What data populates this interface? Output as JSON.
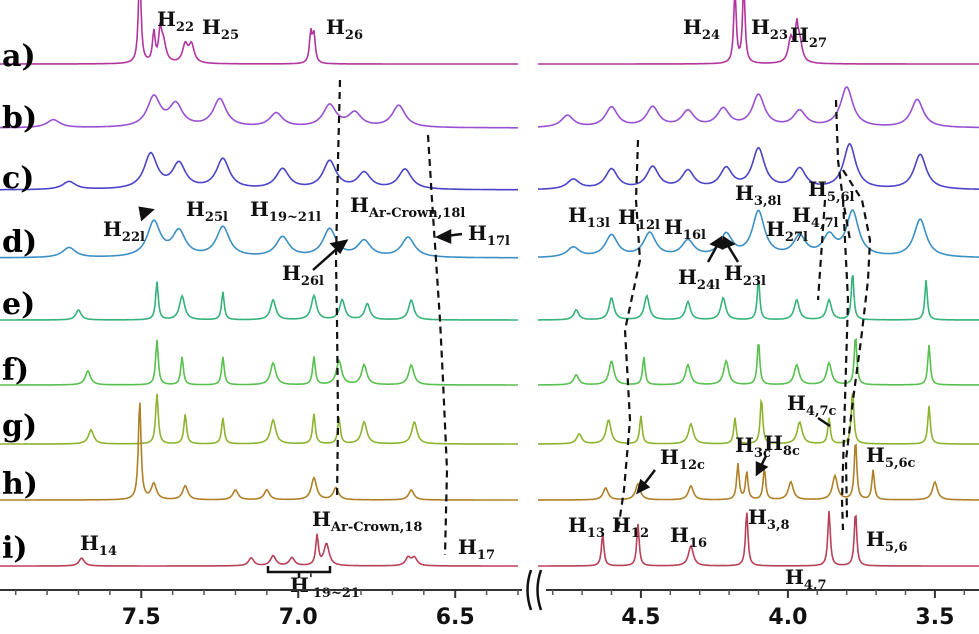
{
  "chart_data": {
    "type": "line",
    "title": "",
    "xlabel": "",
    "ylabel": "",
    "x_panels": [
      {
        "name": "left",
        "xlim": [
          7.95,
          6.3
        ],
        "ticks": [
          "7.5",
          "7.0",
          "6.5"
        ],
        "tick_values": [
          7.5,
          7.0,
          6.5
        ]
      },
      {
        "name": "right",
        "xlim": [
          4.85,
          3.35
        ],
        "ticks": [
          "4.5",
          "4.0",
          "3.5"
        ],
        "tick_values": [
          4.5,
          4.0,
          3.5
        ]
      }
    ],
    "axis_break": true,
    "grid": false,
    "series": [
      {
        "name": "a)",
        "color": "#b2359f",
        "peaks": [
          [
            7.505,
            95
          ],
          [
            7.46,
            30
          ],
          [
            7.44,
            28
          ],
          [
            7.43,
            22
          ],
          [
            7.36,
            18
          ],
          [
            7.34,
            18
          ],
          [
            6.96,
            30
          ],
          [
            6.95,
            28
          ],
          [
            4.18,
            75
          ],
          [
            4.15,
            80
          ],
          [
            3.99,
            25
          ],
          [
            3.97,
            30
          ],
          [
            3.96,
            22
          ]
        ]
      },
      {
        "name": "b)",
        "color": "#9a50d2",
        "peaks": [
          [
            7.78,
            8
          ],
          [
            7.46,
            30
          ],
          [
            7.39,
            22
          ],
          [
            7.25,
            28
          ],
          [
            7.07,
            14
          ],
          [
            6.9,
            22
          ],
          [
            6.82,
            14
          ],
          [
            6.68,
            22
          ],
          [
            4.75,
            12
          ],
          [
            4.6,
            20
          ],
          [
            4.46,
            20
          ],
          [
            4.34,
            16
          ],
          [
            4.22,
            18
          ],
          [
            4.1,
            32
          ],
          [
            3.96,
            16
          ],
          [
            3.8,
            40
          ],
          [
            3.56,
            28
          ]
        ]
      },
      {
        "name": "c)",
        "color": "#4b44c8",
        "peaks": [
          [
            7.73,
            8
          ],
          [
            7.47,
            35
          ],
          [
            7.38,
            25
          ],
          [
            7.24,
            30
          ],
          [
            7.05,
            20
          ],
          [
            6.9,
            28
          ],
          [
            6.79,
            16
          ],
          [
            6.66,
            20
          ],
          [
            4.73,
            10
          ],
          [
            4.6,
            20
          ],
          [
            4.46,
            22
          ],
          [
            4.34,
            18
          ],
          [
            4.21,
            20
          ],
          [
            4.1,
            40
          ],
          [
            3.96,
            20
          ],
          [
            3.79,
            45
          ],
          [
            3.55,
            35
          ]
        ]
      },
      {
        "name": "d)",
        "color": "#3c8fc4",
        "peaks": [
          [
            7.73,
            10
          ],
          [
            7.46,
            35
          ],
          [
            7.38,
            25
          ],
          [
            7.24,
            30
          ],
          [
            7.05,
            20
          ],
          [
            6.9,
            28
          ],
          [
            6.79,
            16
          ],
          [
            6.65,
            20
          ],
          [
            4.73,
            10
          ],
          [
            4.6,
            22
          ],
          [
            4.47,
            24
          ],
          [
            4.34,
            16
          ],
          [
            4.21,
            22
          ],
          [
            4.1,
            45
          ],
          [
            3.96,
            20
          ],
          [
            3.86,
            20
          ],
          [
            3.78,
            45
          ],
          [
            3.55,
            38
          ]
        ]
      },
      {
        "name": "e)",
        "color": "#36b27a",
        "peaks": [
          [
            7.7,
            10
          ],
          [
            7.45,
            38
          ],
          [
            7.37,
            24
          ],
          [
            7.24,
            28
          ],
          [
            7.08,
            20
          ],
          [
            6.95,
            24
          ],
          [
            6.86,
            20
          ],
          [
            6.78,
            16
          ],
          [
            6.64,
            20
          ],
          [
            4.72,
            10
          ],
          [
            4.6,
            22
          ],
          [
            4.48,
            24
          ],
          [
            4.34,
            18
          ],
          [
            4.22,
            22
          ],
          [
            4.1,
            42
          ],
          [
            3.97,
            20
          ],
          [
            3.86,
            20
          ],
          [
            3.78,
            48
          ],
          [
            3.53,
            40
          ]
        ]
      },
      {
        "name": "f)",
        "color": "#58c04e",
        "peaks": [
          [
            7.67,
            14
          ],
          [
            7.45,
            45
          ],
          [
            7.37,
            28
          ],
          [
            7.24,
            28
          ],
          [
            7.08,
            22
          ],
          [
            6.95,
            28
          ],
          [
            6.87,
            24
          ],
          [
            6.79,
            20
          ],
          [
            6.64,
            20
          ],
          [
            4.72,
            10
          ],
          [
            4.6,
            24
          ],
          [
            4.49,
            28
          ],
          [
            4.34,
            20
          ],
          [
            4.21,
            24
          ],
          [
            4.1,
            44
          ],
          [
            3.97,
            20
          ],
          [
            3.86,
            22
          ],
          [
            3.77,
            50
          ],
          [
            3.52,
            40
          ]
        ]
      },
      {
        "name": "g)",
        "color": "#8db430",
        "peaks": [
          [
            7.66,
            14
          ],
          [
            7.45,
            50
          ],
          [
            7.36,
            30
          ],
          [
            7.24,
            26
          ],
          [
            7.08,
            24
          ],
          [
            6.95,
            30
          ],
          [
            6.87,
            26
          ],
          [
            6.79,
            22
          ],
          [
            6.63,
            22
          ],
          [
            4.71,
            10
          ],
          [
            4.61,
            24
          ],
          [
            4.5,
            28
          ],
          [
            4.33,
            20
          ],
          [
            4.18,
            26
          ],
          [
            4.09,
            46
          ],
          [
            3.96,
            22
          ],
          [
            3.86,
            26
          ],
          [
            3.78,
            55
          ],
          [
            3.52,
            38
          ]
        ]
      },
      {
        "name": "h)",
        "color": "#b08028",
        "peaks": [
          [
            7.505,
            100
          ],
          [
            7.46,
            16
          ],
          [
            7.36,
            14
          ],
          [
            7.2,
            10
          ],
          [
            7.1,
            10
          ],
          [
            6.95,
            22
          ],
          [
            6.88,
            12
          ],
          [
            6.64,
            10
          ],
          [
            4.62,
            12
          ],
          [
            4.51,
            16
          ],
          [
            4.33,
            14
          ],
          [
            4.17,
            36
          ],
          [
            4.14,
            28
          ],
          [
            4.08,
            32
          ],
          [
            3.99,
            18
          ],
          [
            3.84,
            24
          ],
          [
            3.77,
            60
          ],
          [
            3.71,
            30
          ],
          [
            3.5,
            18
          ]
        ]
      },
      {
        "name": "i)",
        "color": "#b84058",
        "peaks": [
          [
            7.69,
            8
          ],
          [
            7.15,
            8
          ],
          [
            7.08,
            10
          ],
          [
            7.02,
            8
          ],
          [
            6.94,
            30
          ],
          [
            6.91,
            22
          ],
          [
            6.65,
            8
          ],
          [
            6.63,
            8
          ],
          [
            4.63,
            32
          ],
          [
            4.51,
            42
          ],
          [
            4.33,
            20
          ],
          [
            4.14,
            55
          ],
          [
            3.86,
            55
          ],
          [
            3.77,
            55
          ]
        ]
      }
    ],
    "annotations": {
      "row_a": [
        "H22",
        "H25",
        "H26",
        "H24",
        "H23",
        "H27"
      ],
      "row_d": [
        "H22l",
        "H25l",
        "H19~21l",
        "HAr-Crown,18l",
        "H17l",
        "H26l",
        "H13l",
        "H12l",
        "H16l",
        "H24l",
        "H23l",
        "H3,8l",
        "H27l",
        "H4,7l",
        "H5,6l"
      ],
      "row_h": [
        "H12c",
        "H3c",
        "H8c",
        "H4,7c",
        "H5,6c"
      ],
      "row_i": [
        "H14",
        "H'19~21",
        "HAr-Crown,18",
        "H17",
        "H13",
        "H12",
        "H16",
        "H3,8",
        "H4,7",
        "H5,6"
      ]
    }
  },
  "labels": {
    "row_a": "a)",
    "row_b": "b)",
    "row_c": "c)",
    "row_d": "d)",
    "row_e": "e)",
    "row_f": "f)",
    "row_g": "g)",
    "row_h": "h)",
    "row_i": "i)",
    "H": "H",
    "sub_22": "22",
    "sub_25": "25",
    "sub_26": "26",
    "sub_24": "24",
    "sub_23": "23",
    "sub_27": "27",
    "sub_22l": "22l",
    "sub_25l": "25l",
    "sub_19_21l": "19~21l",
    "sub_arcrown18l": "Ar-Crown,18l",
    "sub_17l": "17l",
    "sub_26l": "26l",
    "sub_13l": "13l",
    "sub_12l": "12l",
    "sub_16l": "16l",
    "sub_24l": "24l",
    "sub_23l": "23l",
    "sub_38l": "3,8l",
    "sub_27l": "27l",
    "sub_47l": "4,7l",
    "sub_56l": "5,6l",
    "sub_12c": "12c",
    "sub_3c": "3c",
    "sub_8c": "8c",
    "sub_47c": "4,7c",
    "sub_56c": "5,6c",
    "sub_14": "14",
    "sub_19_21": "19~21",
    "sub_arcrown18": "Ar-Crown,18",
    "sub_17": "17",
    "sub_13": "13",
    "sub_12": "12",
    "sub_16": "16",
    "sub_38": "3,8",
    "sub_47": "4,7",
    "sub_56": "5,6",
    "prime": "'"
  }
}
